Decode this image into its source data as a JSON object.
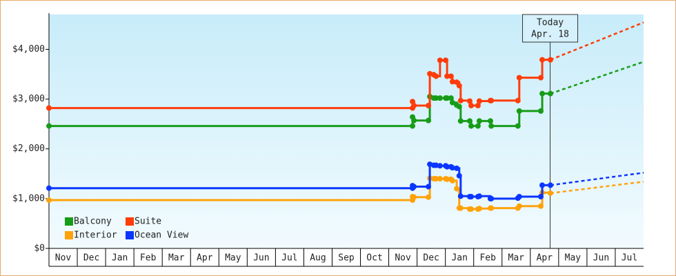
{
  "chart_data": {
    "type": "step-line",
    "x": [
      0,
      12.84,
      12.84,
      12.89,
      13.4,
      13.45,
      13.59,
      13.67,
      13.81,
      14.01,
      14.06,
      14.2,
      14.25,
      14.4,
      14.49,
      14.54,
      14.86,
      14.91,
      15.15,
      15.2,
      15.59,
      15.62,
      16.56,
      16.61,
      17.37,
      17.42,
      17.71
    ],
    "forecast_x": [
      17.71,
      21
    ],
    "series": [
      {
        "name": "Balcony",
        "color": "#179c17",
        "values": [
          2460,
          2460,
          2640,
          2570,
          2570,
          3050,
          3020,
          3020,
          3020,
          3020,
          3020,
          3020,
          2930,
          2880,
          2850,
          2560,
          2560,
          2460,
          2460,
          2560,
          2560,
          2460,
          2460,
          2760,
          2760,
          3110,
          3110
        ],
        "forecast": [
          3110,
          3750
        ]
      },
      {
        "name": "Suite",
        "color": "#ff3c0a",
        "values": [
          2820,
          2820,
          2950,
          2870,
          2870,
          3510,
          3490,
          3460,
          3780,
          3780,
          3460,
          3460,
          3350,
          3340,
          3270,
          2970,
          2960,
          2870,
          2870,
          2960,
          2970,
          2970,
          2970,
          3430,
          3430,
          3790,
          3790
        ],
        "forecast": [
          3790,
          4540
        ]
      },
      {
        "name": "Interior",
        "color": "#ffa20a",
        "values": [
          970,
          970,
          1040,
          1030,
          1030,
          1410,
          1400,
          1400,
          1400,
          1400,
          1390,
          1390,
          1360,
          1200,
          810,
          810,
          790,
          790,
          790,
          800,
          810,
          810,
          810,
          850,
          850,
          1120,
          1110
        ],
        "forecast": [
          1110,
          1340
        ]
      },
      {
        "name": "Ocean View",
        "color": "#0a36ff",
        "values": [
          1210,
          1210,
          1260,
          1240,
          1240,
          1690,
          1670,
          1670,
          1660,
          1660,
          1640,
          1640,
          1620,
          1610,
          1460,
          1050,
          1040,
          1040,
          1040,
          1050,
          1000,
          1000,
          1010,
          1040,
          1040,
          1270,
          1270
        ],
        "forecast": [
          1270,
          1520
        ]
      }
    ],
    "xlim": [
      0,
      21
    ],
    "xticks": [
      {
        "value": 0,
        "label": "Nov"
      },
      {
        "value": 1,
        "label": "Dec"
      },
      {
        "value": 2,
        "label": "Jan"
      },
      {
        "value": 3,
        "label": "Feb"
      },
      {
        "value": 4,
        "label": "Mar"
      },
      {
        "value": 5,
        "label": "Apr"
      },
      {
        "value": 6,
        "label": "May"
      },
      {
        "value": 7,
        "label": "Jun"
      },
      {
        "value": 8,
        "label": "Jul"
      },
      {
        "value": 9,
        "label": "Aug"
      },
      {
        "value": 10,
        "label": "Sep"
      },
      {
        "value": 11,
        "label": "Oct"
      },
      {
        "value": 12,
        "label": "Nov"
      },
      {
        "value": 13,
        "label": "Dec"
      },
      {
        "value": 14,
        "label": "Jan"
      },
      {
        "value": 15,
        "label": "Feb"
      },
      {
        "value": 16,
        "label": "Mar"
      },
      {
        "value": 17,
        "label": "Apr"
      },
      {
        "value": 18,
        "label": "May"
      },
      {
        "value": 19,
        "label": "Jun"
      },
      {
        "value": 20,
        "label": "Jul"
      }
    ],
    "ylim": [
      0,
      4700
    ],
    "yticks": [
      {
        "value": 0,
        "label": "$0"
      },
      {
        "value": 1000,
        "label": "$1,000"
      },
      {
        "value": 2000,
        "label": "$2,000"
      },
      {
        "value": 3000,
        "label": "$3,000"
      },
      {
        "value": 4000,
        "label": "$4,000"
      }
    ],
    "annotation": {
      "x": 17.7,
      "lines": [
        "Today",
        "Apr. 18"
      ]
    },
    "legend": "bottom-left"
  }
}
